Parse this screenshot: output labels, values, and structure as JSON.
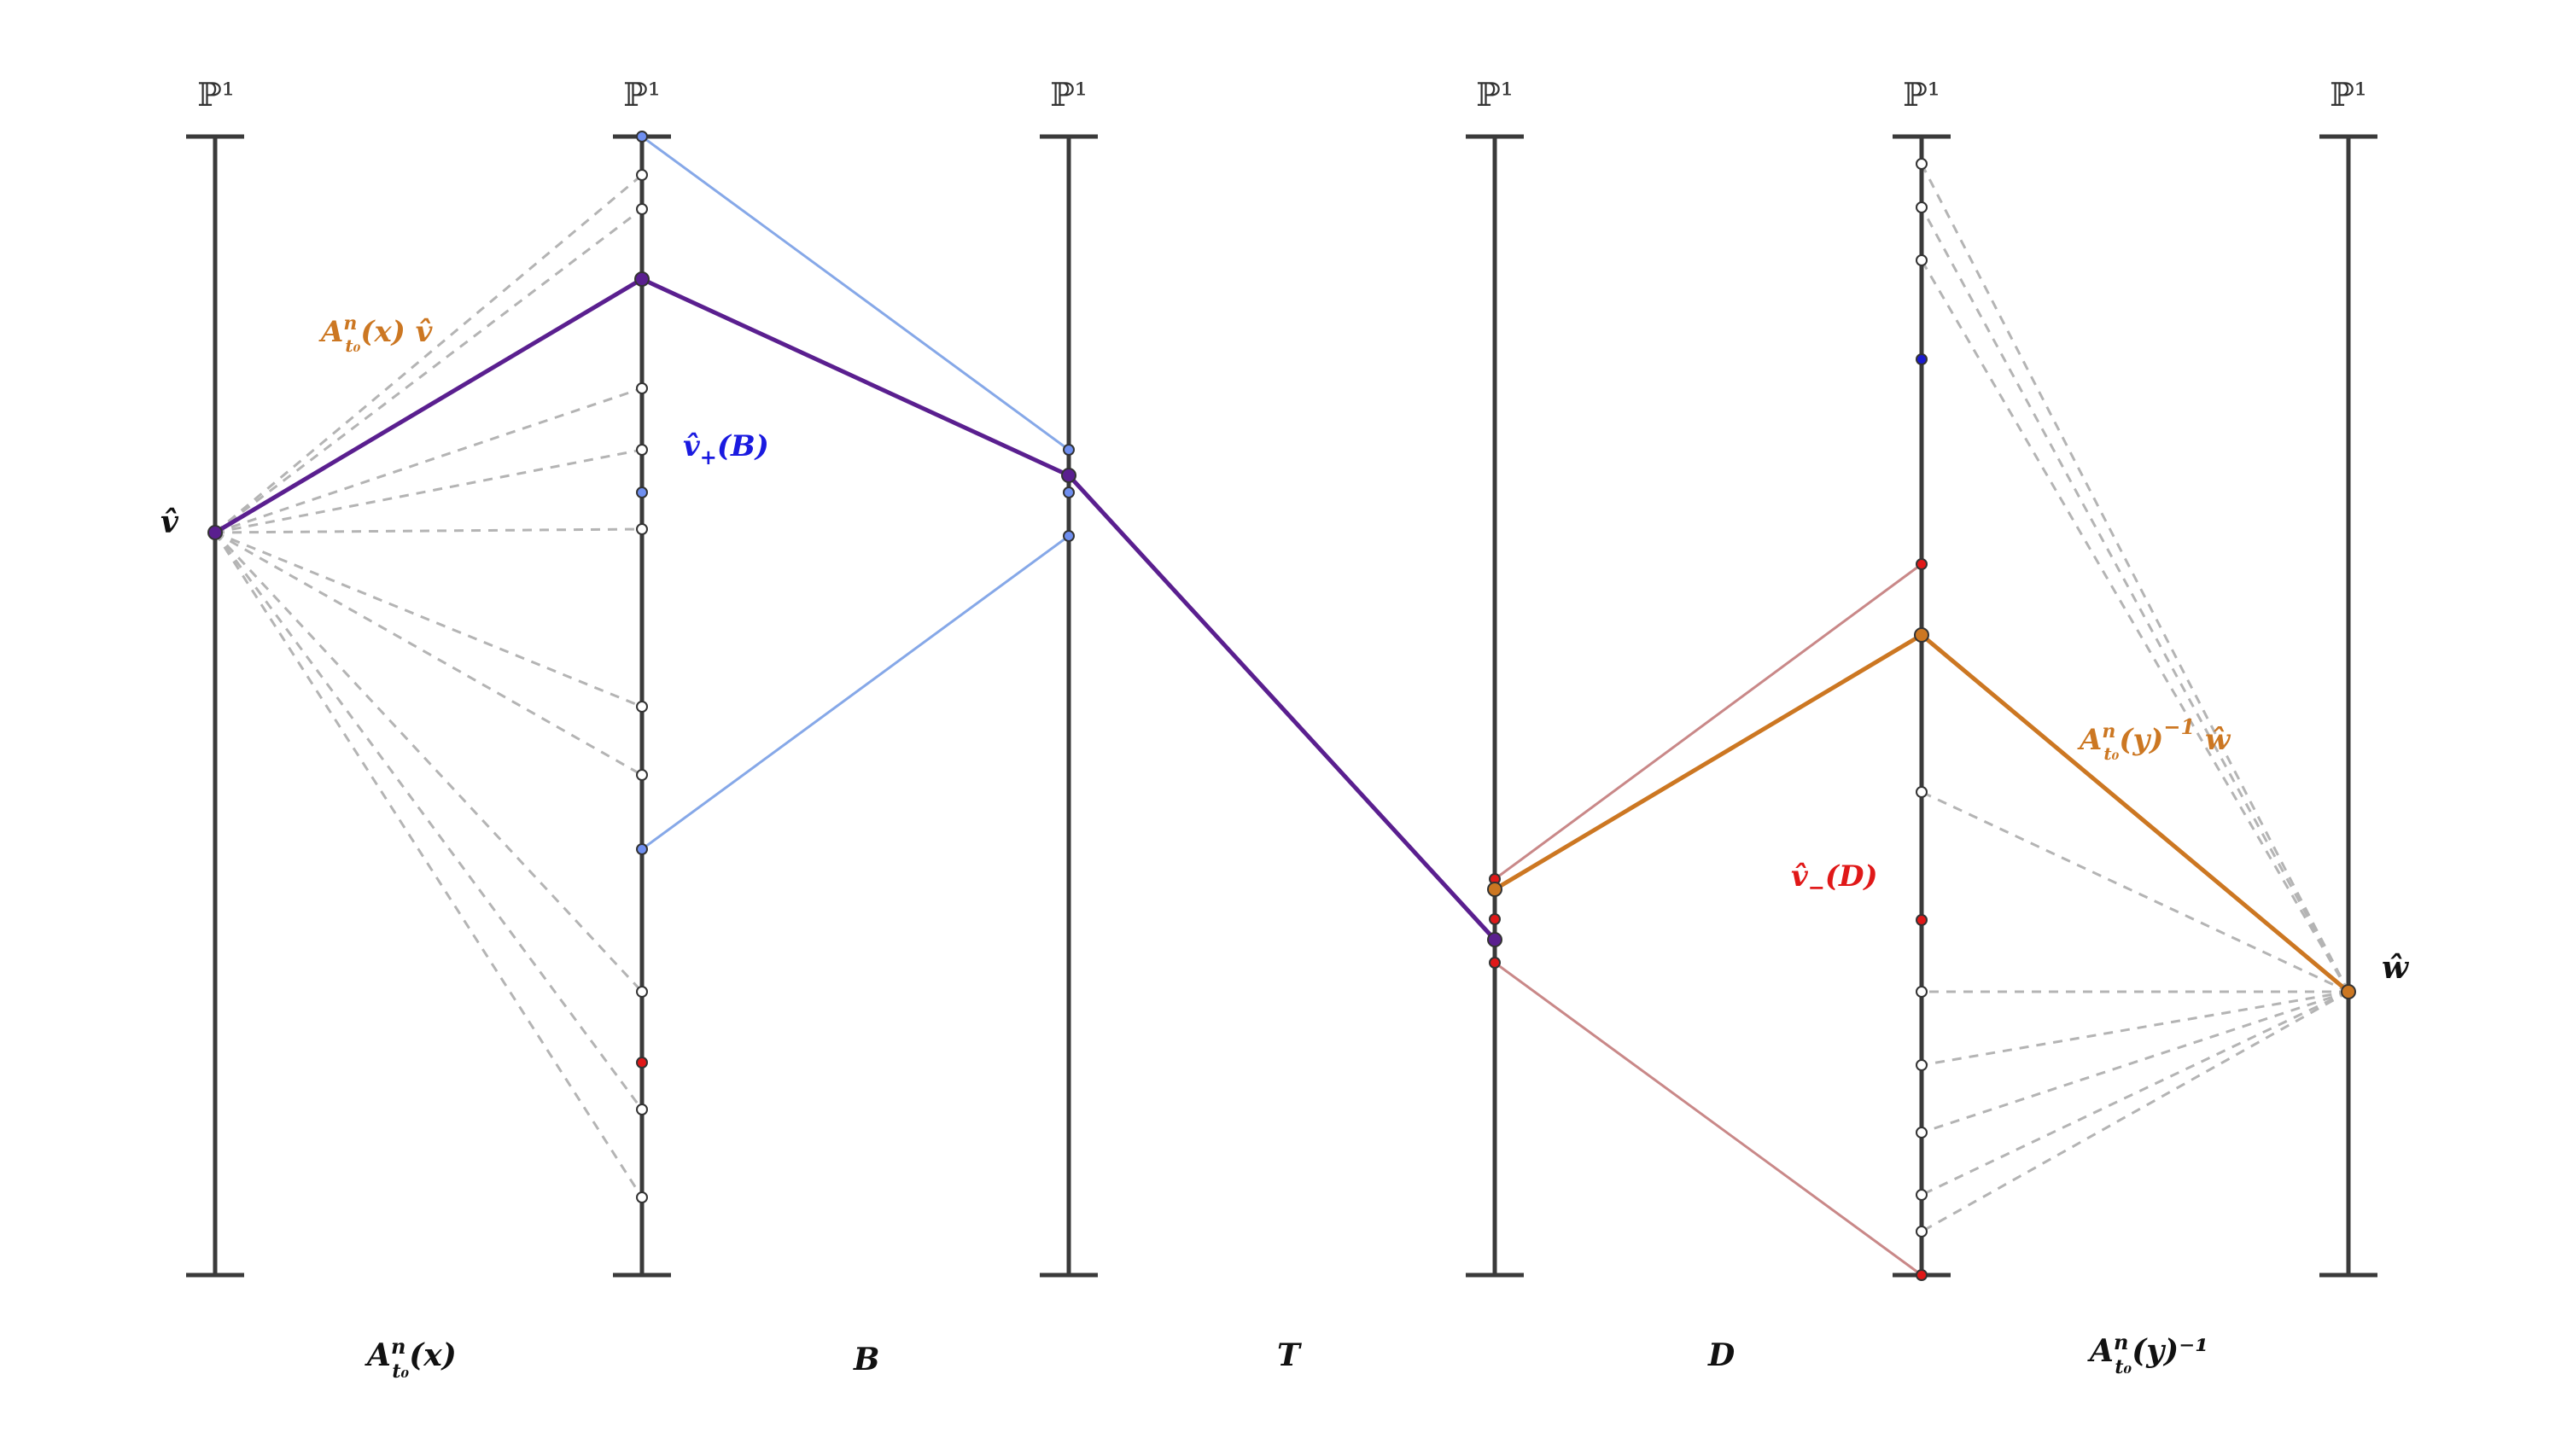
{
  "colors": {
    "axis": "#3a3a3a",
    "dash": "#b4b4b4",
    "path_main": "#5a1f8f",
    "path_orange": "#cc7722",
    "line_blue": "#86a8e8",
    "line_red": "#c98888",
    "dot_white": "#ffffff",
    "dot_blue": "#6f8ff0",
    "dot_blue_dark": "#1a1ad0",
    "dot_red": "#e01818",
    "dot_purple": "#5a1f8f",
    "dot_orange": "#cc7722",
    "label_blue": "#1a1ae0",
    "label_red": "#e01818",
    "label_orange": "#cc7722",
    "label_black": "#111111"
  },
  "space_label": "ℙ¹",
  "axes": [
    {
      "id": "axis-1"
    },
    {
      "id": "axis-2"
    },
    {
      "id": "axis-3"
    },
    {
      "id": "axis-4"
    },
    {
      "id": "axis-5"
    },
    {
      "id": "axis-6"
    }
  ],
  "maps": [
    {
      "id": "map-A-x",
      "label": "A",
      "sup": "n",
      "sub": "t₀",
      "tail": "(x)"
    },
    {
      "id": "map-B",
      "label": "B"
    },
    {
      "id": "map-T",
      "label": "T"
    },
    {
      "id": "map-D",
      "label": "D"
    },
    {
      "id": "map-A-y-inv",
      "label": "A",
      "sup": "n",
      "sub": "t₀",
      "tail": "(y)⁻¹"
    }
  ],
  "labels": {
    "v_hat": "v̂",
    "w_hat": "ŵ",
    "A_v": {
      "main": "A",
      "sup": "n",
      "sub": "t₀",
      "tail": "(x) v̂"
    },
    "v_plus": {
      "main": "v̂",
      "sub": "+",
      "tail": "(B)"
    },
    "v_minus": {
      "main": "v̂",
      "sub": "−",
      "tail": "(D)"
    },
    "A_w": {
      "main": "A",
      "sup": "n",
      "sub": "t₀",
      "tail": "(y)",
      "sup2": "−1",
      "tail2": " ŵ"
    }
  }
}
